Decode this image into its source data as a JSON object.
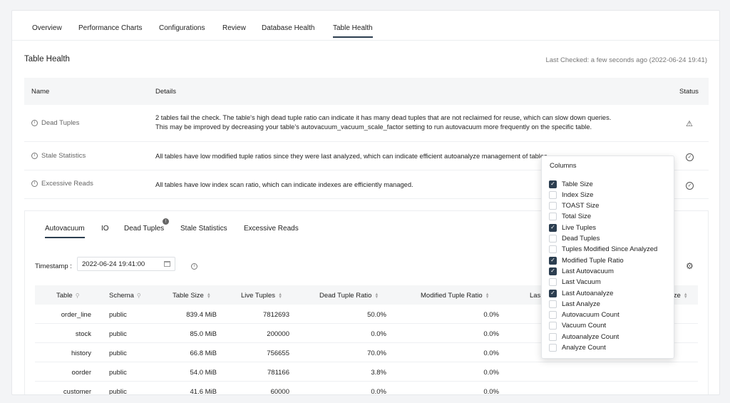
{
  "nav": {
    "tabs": [
      "Overview",
      "Performance Charts",
      "Configurations",
      "Review",
      "Database Health",
      "Table Health"
    ],
    "active": "Table Health"
  },
  "page": {
    "title": "Table Health",
    "last_checked": "Last Checked: a few seconds ago (2022-06-24 19:41)"
  },
  "checks": {
    "headers": {
      "name": "Name",
      "details": "Details",
      "status": "Status"
    },
    "rows": [
      {
        "name": "Dead Tuples",
        "details_line1": "2 tables fail the check. The table's high dead tuple ratio can indicate it has many dead tuples that are not reclaimed for reuse, which can slow down queries.",
        "details_line2": "This may be improved by decreasing your table's autovacuum_vacuum_scale_factor setting to run autovacuum more frequently on the specific table.",
        "status": "warning"
      },
      {
        "name": "Stale Statistics",
        "details_line1": "All tables have low modified tuple ratios since they were last analyzed, which can indicate efficient autoanalyze management of tables.",
        "status": "ok"
      },
      {
        "name": "Excessive Reads",
        "details_line1": "All tables have low index scan ratio, which can indicate indexes are efficiently managed.",
        "status": "ok"
      }
    ]
  },
  "subtabs": {
    "items": [
      "Autovacuum",
      "IO",
      "Dead Tuples",
      "Stale Statistics",
      "Excessive Reads"
    ],
    "active": "Autovacuum",
    "dead_tuples_badge": "!"
  },
  "timestamp": {
    "label": "Timestamp :",
    "value": "2022-06-24 19:41:00"
  },
  "table": {
    "headers": [
      "Table",
      "Schema",
      "Table Size",
      "Live Tuples",
      "Dead Tuple Ratio",
      "Modified Tuple Ratio",
      "Last Autovacuum",
      "Last Autoanalyze"
    ],
    "headers_visible": [
      "Table",
      "Schema",
      "Table Size",
      "Live Tuples",
      "Dead Tuple Ratio",
      "Modified Tuple Ratio",
      "Las",
      "yze"
    ],
    "rows": [
      [
        "order_line",
        "public",
        "839.4 MiB",
        "7812693",
        "50.0%",
        "0.0%"
      ],
      [
        "stock",
        "public",
        "85.0 MiB",
        "200000",
        "0.0%",
        "0.0%"
      ],
      [
        "history",
        "public",
        "66.8 MiB",
        "756655",
        "70.0%",
        "0.0%"
      ],
      [
        "oorder",
        "public",
        "54.0 MiB",
        "781166",
        "3.8%",
        "0.0%"
      ],
      [
        "customer",
        "public",
        "41.6 MiB",
        "60000",
        "0.0%",
        "0.0%"
      ]
    ]
  },
  "columns_menu": {
    "title": "Columns",
    "options": [
      {
        "label": "Table Size",
        "checked": true
      },
      {
        "label": "Index Size",
        "checked": false
      },
      {
        "label": "TOAST Size",
        "checked": false
      },
      {
        "label": "Total Size",
        "checked": false
      },
      {
        "label": "Live Tuples",
        "checked": true
      },
      {
        "label": "Dead Tuples",
        "checked": false
      },
      {
        "label": "Tuples Modified Since Analyzed",
        "checked": false
      },
      {
        "label": "Modified Tuple Ratio",
        "checked": true
      },
      {
        "label": "Last Autovacuum",
        "checked": true
      },
      {
        "label": "Last Vacuum",
        "checked": false
      },
      {
        "label": "Last Autoanalyze",
        "checked": true
      },
      {
        "label": "Last Analyze",
        "checked": false
      },
      {
        "label": "Autovacuum Count",
        "checked": false
      },
      {
        "label": "Vacuum Count",
        "checked": false
      },
      {
        "label": "Autoanalyze Count",
        "checked": false
      },
      {
        "label": "Analyze Count",
        "checked": false
      }
    ]
  },
  "colors": {
    "accent": "#2c3e50",
    "header_bg": "#f5f6f7",
    "muted_text": "#777777"
  },
  "icons": {
    "info": "info-circle-icon",
    "warning": "warning-triangle-icon",
    "ok": "check-circle-icon",
    "calendar": "calendar-icon",
    "settings": "gear-icon",
    "search": "search-icon",
    "sort": "sort-icon"
  }
}
